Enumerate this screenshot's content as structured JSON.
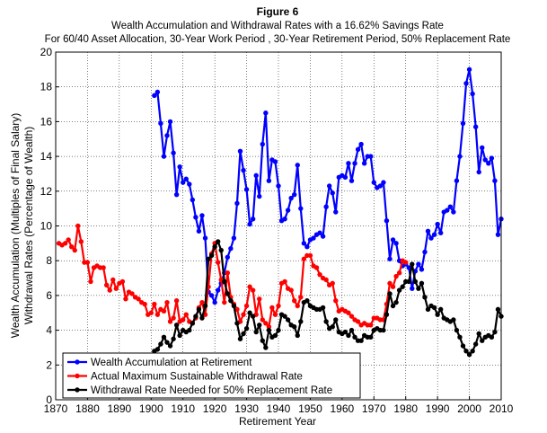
{
  "chart_data": {
    "type": "line",
    "title": "Figure 6",
    "subtitle1": "Wealth Accumulation and Withdrawal Rates with a 16.62% Savings Rate",
    "subtitle2": "For 60/40 Asset Allocation, 30-Year Work Period , 30-Year Retirement Period, 50% Replacement Rate",
    "xlabel": "Retirement Year",
    "ylabel1": "Wealth Accumulation (Multiples of Final Salary)",
    "ylabel2": "Withdrawal Rates (Percentage of Wealth)",
    "xlim": [
      1870,
      2010
    ],
    "ylim": [
      0,
      20
    ],
    "xticks": [
      "1870",
      "1880",
      "1890",
      "1900",
      "1910",
      "1920",
      "1930",
      "1940",
      "1950",
      "1960",
      "1970",
      "1980",
      "1990",
      "2000",
      "2010"
    ],
    "yticks": [
      "0",
      "2",
      "4",
      "6",
      "8",
      "10",
      "12",
      "14",
      "16",
      "18",
      "20"
    ],
    "grid": true,
    "legend_position": "bottom-left",
    "series": [
      {
        "name": "Wealth Accumulation at Retirement",
        "color": "#0000ff",
        "x": [
          1901,
          1902,
          1903,
          1904,
          1905,
          1906,
          1907,
          1908,
          1909,
          1910,
          1911,
          1912,
          1913,
          1914,
          1915,
          1916,
          1917,
          1918,
          1919,
          1920,
          1921,
          1922,
          1923,
          1924,
          1925,
          1926,
          1927,
          1928,
          1929,
          1930,
          1931,
          1932,
          1933,
          1934,
          1935,
          1936,
          1937,
          1938,
          1939,
          1940,
          1941,
          1942,
          1943,
          1944,
          1945,
          1946,
          1947,
          1948,
          1949,
          1950,
          1951,
          1952,
          1953,
          1954,
          1955,
          1956,
          1957,
          1958,
          1959,
          1960,
          1961,
          1962,
          1963,
          1964,
          1965,
          1966,
          1967,
          1968,
          1969,
          1970,
          1971,
          1972,
          1973,
          1974,
          1975,
          1976,
          1977,
          1978,
          1979,
          1980,
          1981,
          1982,
          1983,
          1984,
          1985,
          1986,
          1987,
          1988,
          1989,
          1990,
          1991,
          1992,
          1993,
          1994,
          1995,
          1996,
          1997,
          1998,
          1999,
          2000,
          2001,
          2002,
          2003,
          2004,
          2005,
          2006,
          2007,
          2008,
          2009,
          2010
        ],
        "values": [
          17.5,
          17.7,
          15.9,
          14.0,
          15.2,
          16.0,
          14.2,
          11.8,
          13.4,
          12.5,
          12.7,
          12.4,
          11.5,
          10.5,
          9.7,
          10.6,
          9.3,
          6.2,
          6.0,
          5.6,
          6.3,
          6.7,
          7.3,
          8.2,
          8.7,
          9.3,
          11.3,
          14.3,
          13.2,
          12.1,
          10.1,
          10.4,
          12.9,
          11.7,
          14.7,
          16.5,
          12.6,
          13.8,
          13.7,
          12.3,
          10.3,
          10.4,
          10.9,
          11.6,
          11.8,
          13.5,
          11.0,
          9.0,
          8.8,
          9.2,
          9.3,
          9.5,
          9.6,
          9.4,
          11.1,
          12.3,
          11.9,
          10.8,
          12.8,
          12.9,
          12.8,
          13.6,
          12.6,
          13.6,
          14.4,
          14.7,
          13.6,
          14.0,
          14.0,
          12.5,
          12.2,
          12.3,
          12.5,
          10.3,
          8.1,
          9.2,
          9.0,
          8.0,
          7.7,
          7.8,
          7.6,
          6.4,
          7.4,
          7.8,
          7.5,
          8.5,
          9.7,
          9.3,
          9.5,
          10.1,
          9.6,
          10.8,
          10.9,
          11.1,
          10.8,
          12.6,
          14.0,
          15.9,
          18.2,
          19.0,
          17.6,
          15.7,
          13.1,
          14.5,
          13.8,
          13.6,
          13.9,
          12.6,
          9.5,
          10.4
        ]
      },
      {
        "name": "Actual Maximum Sustainable Withdrawal Rate",
        "color": "#ff0000",
        "x": [
          1871,
          1872,
          1873,
          1874,
          1875,
          1876,
          1877,
          1878,
          1879,
          1880,
          1881,
          1882,
          1883,
          1884,
          1885,
          1886,
          1887,
          1888,
          1889,
          1890,
          1891,
          1892,
          1893,
          1894,
          1895,
          1896,
          1897,
          1898,
          1899,
          1900,
          1901,
          1902,
          1903,
          1904,
          1905,
          1906,
          1907,
          1908,
          1909,
          1910,
          1911,
          1912,
          1913,
          1914,
          1915,
          1916,
          1917,
          1918,
          1919,
          1920,
          1921,
          1922,
          1923,
          1924,
          1925,
          1926,
          1927,
          1928,
          1929,
          1930,
          1931,
          1932,
          1933,
          1934,
          1935,
          1936,
          1937,
          1938,
          1939,
          1940,
          1941,
          1942,
          1943,
          1944,
          1945,
          1946,
          1947,
          1948,
          1949,
          1950,
          1951,
          1952,
          1953,
          1954,
          1955,
          1956,
          1957,
          1958,
          1959,
          1960,
          1961,
          1962,
          1963,
          1964,
          1965,
          1966,
          1967,
          1968,
          1969,
          1970,
          1971,
          1972,
          1973,
          1974,
          1975,
          1976,
          1977,
          1978,
          1979,
          1980
        ],
        "values": [
          9.0,
          8.9,
          9.0,
          9.2,
          8.8,
          8.6,
          10.0,
          9.1,
          7.9,
          7.9,
          6.8,
          7.6,
          7.7,
          7.6,
          7.6,
          6.6,
          6.3,
          6.9,
          6.4,
          6.7,
          6.8,
          5.8,
          6.2,
          6.1,
          5.9,
          5.8,
          5.6,
          5.5,
          4.9,
          5.0,
          5.5,
          4.9,
          5.2,
          5.1,
          5.6,
          4.5,
          4.7,
          5.7,
          4.5,
          4.6,
          4.9,
          4.5,
          4.4,
          4.7,
          5.3,
          5.6,
          4.9,
          6.5,
          8.4,
          9.0,
          7.9,
          6.9,
          5.6,
          7.3,
          5.9,
          5.5,
          5.2,
          4.5,
          4.9,
          5.4,
          6.5,
          6.3,
          4.9,
          5.8,
          4.6,
          4.4,
          4.2,
          5.3,
          4.9,
          5.4,
          6.7,
          6.8,
          6.4,
          6.3,
          5.7,
          5.4,
          5.9,
          8.1,
          8.3,
          8.3,
          7.7,
          7.6,
          7.2,
          7.0,
          6.9,
          6.6,
          6.7,
          5.7,
          5.1,
          5.2,
          5.1,
          5.0,
          4.8,
          4.6,
          4.5,
          4.3,
          4.4,
          4.3,
          4.3,
          4.7,
          4.7,
          4.6,
          4.6,
          5.5,
          6.7,
          6.5,
          7.1,
          7.3,
          8.0,
          7.9
        ]
      },
      {
        "name": "Withdrawal Rate Needed for 50% Replacement Rate",
        "color": "#000000",
        "x": [
          1901,
          1902,
          1903,
          1904,
          1905,
          1906,
          1907,
          1908,
          1909,
          1910,
          1911,
          1912,
          1913,
          1914,
          1915,
          1916,
          1917,
          1918,
          1919,
          1920,
          1921,
          1922,
          1923,
          1924,
          1925,
          1926,
          1927,
          1928,
          1929,
          1930,
          1931,
          1932,
          1933,
          1934,
          1935,
          1936,
          1937,
          1938,
          1939,
          1940,
          1941,
          1942,
          1943,
          1944,
          1945,
          1946,
          1947,
          1948,
          1949,
          1950,
          1951,
          1952,
          1953,
          1954,
          1955,
          1956,
          1957,
          1958,
          1959,
          1960,
          1961,
          1962,
          1963,
          1964,
          1965,
          1966,
          1967,
          1968,
          1969,
          1970,
          1971,
          1972,
          1973,
          1974,
          1975,
          1976,
          1977,
          1978,
          1979,
          1980,
          1981,
          1982,
          1983,
          1984,
          1985,
          1986,
          1987,
          1988,
          1989,
          1990,
          1991,
          1992,
          1993,
          1994,
          1995,
          1996,
          1997,
          1998,
          1999,
          2000,
          2001,
          2002,
          2003,
          2004,
          2005,
          2006,
          2007,
          2008,
          2009,
          2010
        ],
        "values": [
          2.8,
          2.9,
          3.2,
          3.6,
          3.3,
          3.1,
          3.5,
          4.3,
          3.7,
          4.0,
          3.9,
          4.0,
          4.4,
          4.8,
          5.2,
          4.7,
          5.4,
          8.1,
          8.3,
          8.8,
          9.1,
          8.6,
          6.8,
          6.1,
          5.7,
          5.4,
          4.4,
          3.5,
          3.8,
          4.1,
          5.0,
          4.8,
          3.9,
          4.3,
          3.4,
          3.0,
          4.0,
          3.6,
          3.7,
          4.0,
          4.9,
          4.8,
          4.6,
          4.3,
          4.2,
          3.7,
          4.5,
          5.6,
          5.7,
          5.4,
          5.3,
          5.2,
          5.2,
          5.3,
          4.5,
          4.1,
          4.2,
          4.6,
          3.9,
          3.8,
          3.9,
          3.7,
          4.0,
          3.6,
          3.4,
          3.4,
          3.7,
          3.6,
          3.6,
          4.0,
          4.1,
          4.0,
          4.0,
          4.9,
          6.1,
          5.4,
          5.6,
          6.3,
          6.5,
          6.8,
          6.8,
          7.8,
          6.8,
          6.4,
          6.7,
          5.9,
          5.2,
          5.4,
          5.3,
          4.9,
          5.2,
          4.7,
          4.6,
          4.5,
          4.6,
          4.0,
          3.6,
          3.1,
          2.8,
          2.6,
          2.8,
          3.2,
          3.8,
          3.4,
          3.6,
          3.7,
          3.6,
          3.9,
          5.2,
          4.8
        ]
      }
    ]
  }
}
